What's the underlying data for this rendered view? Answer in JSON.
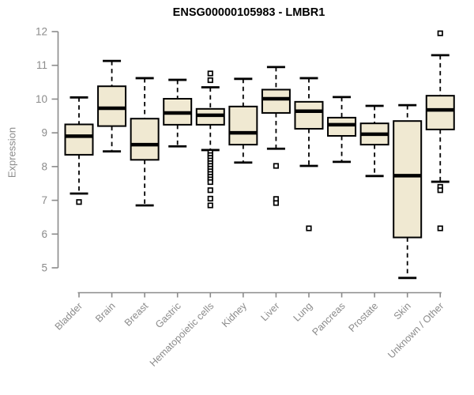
{
  "title": "ENSG00000105983 - LMBR1",
  "y_axis": {
    "label": "Expression",
    "ticks": [
      12,
      11,
      10,
      9,
      8,
      7,
      6,
      5
    ]
  },
  "colors": {
    "box_fill": "#F0E9D2",
    "box_border": "#000000",
    "median": "#000000",
    "whisker": "#000000",
    "outlier_fill": "#ffffff",
    "axis": "#8b8b8b",
    "tick_text": "#8b8b8b",
    "title_text": "#000000"
  },
  "chart_data": {
    "type": "boxplot",
    "title": "ENSG00000105983 - LMBR1",
    "xlabel": "",
    "ylabel": "Expression",
    "ylim": [
      5,
      12
    ],
    "grid": false,
    "legend": "none",
    "categories": [
      "Bladder",
      "Brain",
      "Breast",
      "Gastric",
      "Hematopoietic cells",
      "Kidney",
      "Liver",
      "Lung",
      "Pancreas",
      "Prostate",
      "Skin",
      "Unknown / Other"
    ],
    "series": [
      {
        "name": "Bladder",
        "whisker_low": 7.2,
        "q1": 8.35,
        "median": 8.9,
        "q3": 9.25,
        "whisker_high": 10.05,
        "outliers": [
          6.95
        ]
      },
      {
        "name": "Brain",
        "whisker_low": 8.45,
        "q1": 9.2,
        "median": 9.73,
        "q3": 10.38,
        "whisker_high": 11.13,
        "outliers": []
      },
      {
        "name": "Breast",
        "whisker_low": 6.85,
        "q1": 8.2,
        "median": 8.65,
        "q3": 9.42,
        "whisker_high": 10.62,
        "outliers": []
      },
      {
        "name": "Gastric",
        "whisker_low": 8.6,
        "q1": 9.24,
        "median": 9.59,
        "q3": 10.01,
        "whisker_high": 10.57,
        "outliers": []
      },
      {
        "name": "Hematopoietic cells",
        "whisker_low": 8.49,
        "q1": 9.24,
        "median": 9.52,
        "q3": 9.71,
        "whisker_high": 10.35,
        "outliers": [
          10.76,
          10.56,
          8.42,
          8.34,
          8.26,
          8.18,
          8.1,
          8.02,
          7.94,
          7.86,
          7.78,
          7.7,
          7.62,
          7.54,
          7.3,
          7.05,
          6.85
        ]
      },
      {
        "name": "Kidney",
        "whisker_low": 8.12,
        "q1": 8.65,
        "median": 9.0,
        "q3": 9.78,
        "whisker_high": 10.6,
        "outliers": []
      },
      {
        "name": "Liver",
        "whisker_low": 8.53,
        "q1": 9.59,
        "median": 10.01,
        "q3": 10.28,
        "whisker_high": 10.95,
        "outliers": [
          8.02,
          7.04,
          6.92
        ]
      },
      {
        "name": "Lung",
        "whisker_low": 8.02,
        "q1": 9.12,
        "median": 9.64,
        "q3": 9.92,
        "whisker_high": 10.62,
        "outliers": [
          6.17
        ]
      },
      {
        "name": "Pancreas",
        "whisker_low": 8.14,
        "q1": 8.91,
        "median": 9.24,
        "q3": 9.45,
        "whisker_high": 10.06,
        "outliers": []
      },
      {
        "name": "Prostate",
        "whisker_low": 7.72,
        "q1": 8.65,
        "median": 8.96,
        "q3": 9.28,
        "whisker_high": 9.8,
        "outliers": []
      },
      {
        "name": "Skin",
        "whisker_low": 4.7,
        "q1": 5.9,
        "median": 7.73,
        "q3": 9.35,
        "whisker_high": 9.82,
        "outliers": []
      },
      {
        "name": "Unknown / Other",
        "whisker_low": 7.55,
        "q1": 9.1,
        "median": 9.68,
        "q3": 10.1,
        "whisker_high": 11.3,
        "outliers": [
          11.95,
          7.4,
          7.3,
          6.17
        ]
      }
    ]
  }
}
